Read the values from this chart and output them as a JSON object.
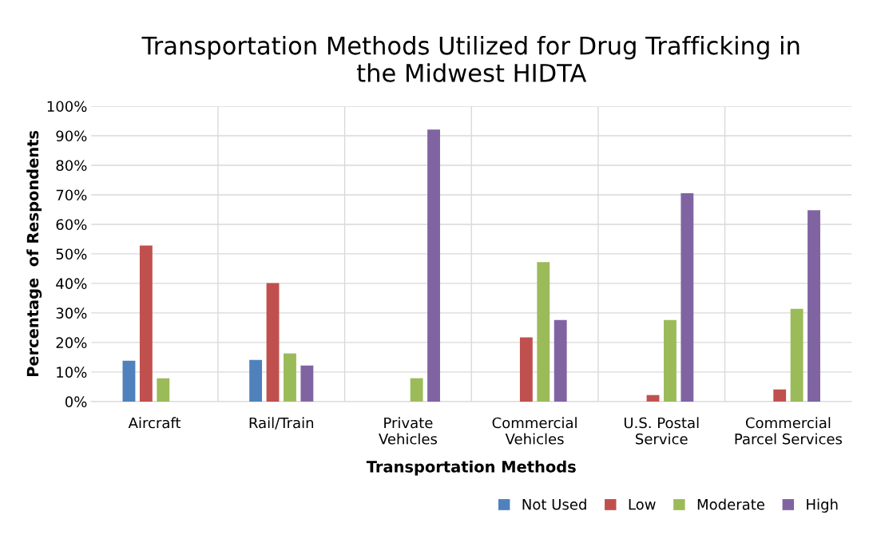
{
  "chart_data": {
    "type": "bar",
    "title": "Transportation Methods Utilized for Drug Trafficking in\nthe Midwest HIDTA",
    "xlabel": "Transportation Methods",
    "ylabel": "Percentage  of Respondents",
    "categories": [
      "Aircraft",
      "Rail/Train",
      "Private\nVehicles",
      "Commercial\nVehicles",
      "U.S. Postal\nService",
      "Commercial\nParcel Services"
    ],
    "series": [
      {
        "name": "Not Used",
        "color": "#4f81bd",
        "values": [
          13.8,
          14.1,
          0,
          0,
          0,
          0
        ]
      },
      {
        "name": "Low",
        "color": "#c0504d",
        "values": [
          52.8,
          40.1,
          0,
          21.7,
          2.2,
          4.1
        ]
      },
      {
        "name": "Moderate",
        "color": "#9bbb59",
        "values": [
          7.9,
          16.3,
          7.9,
          47.2,
          27.6,
          31.4
        ]
      },
      {
        "name": "High",
        "color": "#8064a2",
        "values": [
          0,
          12.2,
          92.1,
          27.6,
          70.5,
          64.8
        ]
      }
    ],
    "ylim": [
      0,
      100
    ],
    "yticks": [
      {
        "value": 0,
        "label": "0%"
      },
      {
        "value": 10,
        "label": "10%"
      },
      {
        "value": 20,
        "label": "20%"
      },
      {
        "value": 30,
        "label": "30%"
      },
      {
        "value": 40,
        "label": "40%"
      },
      {
        "value": 50,
        "label": "50%"
      },
      {
        "value": 60,
        "label": "60%"
      },
      {
        "value": 70,
        "label": "70%"
      },
      {
        "value": 80,
        "label": "80%"
      },
      {
        "value": 90,
        "label": "90%"
      },
      {
        "value": 100,
        "label": "100%"
      }
    ],
    "grid": true,
    "legend": "bottom right"
  }
}
